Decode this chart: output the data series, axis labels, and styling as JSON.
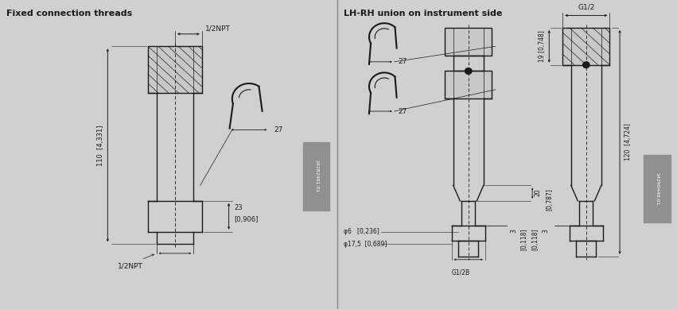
{
  "bg_color": "#d0d0d0",
  "line_color": "#1a1a1a",
  "text_color": "#1a1a1a",
  "title_left": "Fixed connection threads",
  "title_right": "LH-RH union on instrument side",
  "part_number_left": "14282481.01",
  "part_number_right": "14290448.01"
}
